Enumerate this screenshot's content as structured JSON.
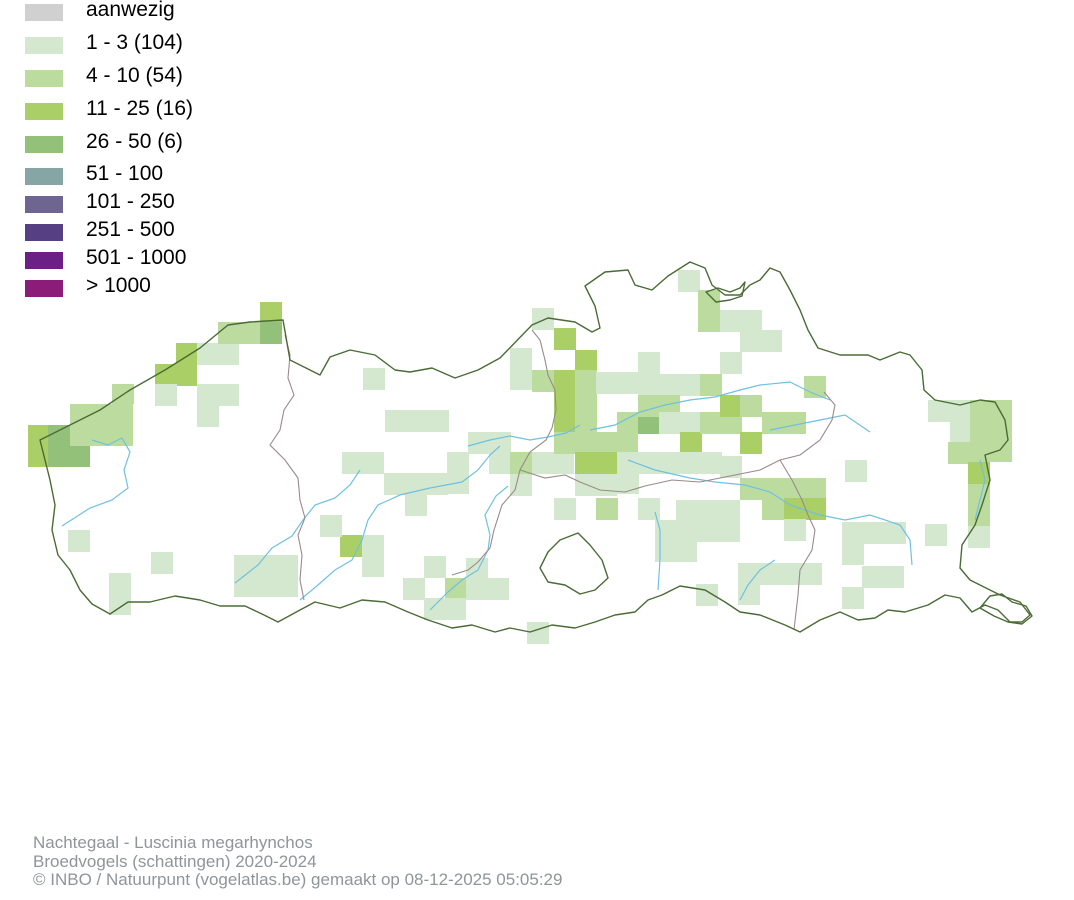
{
  "legend": {
    "items": [
      {
        "label": "aanwezig",
        "color": "#d0d0d0"
      },
      {
        "label": "1 - 3 (104)",
        "color": "#d4e8cf"
      },
      {
        "label": "4 - 10 (54)",
        "color": "#bcdc9f"
      },
      {
        "label": "11 - 25 (16)",
        "color": "#a9cf66"
      },
      {
        "label": "26 - 50 (6)",
        "color": "#93c17a"
      },
      {
        "label": "51 - 100",
        "color": "#86a6a5"
      },
      {
        "label": "101 - 250",
        "color": "#6e6690"
      },
      {
        "label": "251 - 500",
        "color": "#573f84"
      },
      {
        "label": "501 - 1000",
        "color": "#6b2086"
      },
      {
        "label": "> 1000",
        "color": "#8b1d78"
      }
    ]
  },
  "map": {
    "border_color": "#4a6b35",
    "province_border_color": "#9a8a8a",
    "river_color": "#6fc0e0"
  },
  "caption": {
    "line1": "Nachtegaal - Luscinia megarhynchos",
    "line2": "Broedvogels (schattingen) 2020-2024",
    "line3": "© INBO / Natuurpunt (vogelatlas.be) gemaakt op 08-12-2025 05:05:29"
  }
}
